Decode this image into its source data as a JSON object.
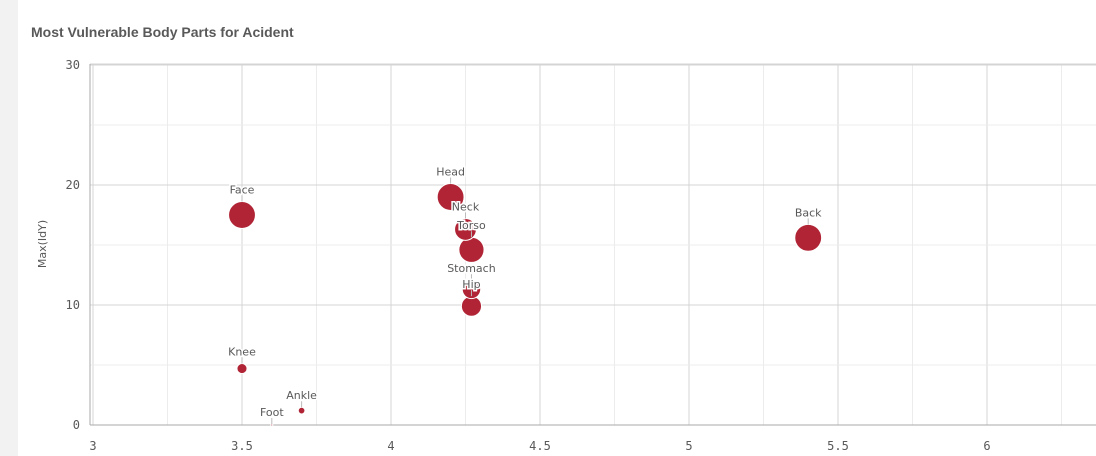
{
  "chart_data": {
    "type": "scatter",
    "title": "Most Vulnerable Body Parts for Acident",
    "xlabel": "",
    "ylabel": "Max(IdY)",
    "xlim": [
      3,
      6.35
    ],
    "ylim": [
      0,
      30
    ],
    "x_ticks": [
      "3",
      "3.5",
      "4",
      "4.5",
      "5",
      "5.5",
      "6"
    ],
    "y_ticks": [
      "0",
      "10",
      "20",
      "30"
    ],
    "grid": true,
    "point_color": "#b02435",
    "points": [
      {
        "label": "Head",
        "x": 4.2,
        "y": 19.0,
        "size": 3.2
      },
      {
        "label": "Face",
        "x": 3.5,
        "y": 17.5,
        "size": 3.2
      },
      {
        "label": "Neck",
        "x": 4.25,
        "y": 16.3,
        "size": 2.6
      },
      {
        "label": "Torso",
        "x": 4.27,
        "y": 14.6,
        "size": 3.0
      },
      {
        "label": "Back",
        "x": 5.4,
        "y": 15.6,
        "size": 3.2
      },
      {
        "label": "Stomach",
        "x": 4.27,
        "y": 11.3,
        "size": 2.2
      },
      {
        "label": "Hip",
        "x": 4.27,
        "y": 9.9,
        "size": 2.4
      },
      {
        "label": "Knee",
        "x": 3.5,
        "y": 4.7,
        "size": 1.2
      },
      {
        "label": "Ankle",
        "x": 3.7,
        "y": 1.2,
        "size": 0.8
      },
      {
        "label": "Foot",
        "x": 3.6,
        "y": 0.0,
        "size": 0.12
      }
    ]
  }
}
